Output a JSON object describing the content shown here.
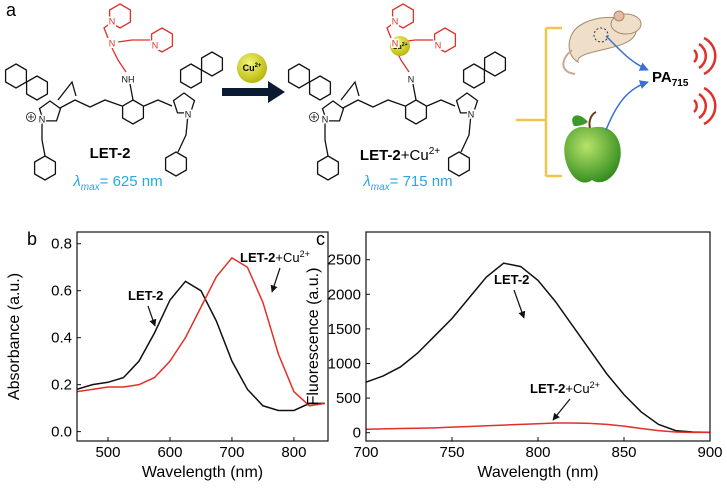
{
  "scheme": {
    "label": "a",
    "reactant": {
      "name": "LET-2",
      "lambda": "λ",
      "sub": "max",
      "value": "= 625 nm"
    },
    "product": {
      "name_parts": [
        "LET-2",
        "+Cu",
        "2+"
      ],
      "lambda": "λ",
      "sub": "max",
      "value": "= 715 nm"
    },
    "reagent": {
      "symbol": "Cu",
      "charge": "2+"
    },
    "output": {
      "symbol": "PA",
      "sub": "715"
    },
    "atoms": [
      [
        "N",
        "N",
        "NH",
        "N",
        "N",
        "N"
      ],
      [
        "N",
        "N",
        "N",
        "N",
        "N",
        "N"
      ]
    ]
  },
  "chart_data": [
    {
      "type": "line",
      "panel_label": "b",
      "x_label": "Wavelength (nm)",
      "y_label": "Absorbance (a.u.)",
      "x": [
        450,
        475,
        500,
        525,
        550,
        575,
        600,
        625,
        650,
        675,
        700,
        725,
        750,
        775,
        800,
        825,
        850
      ],
      "xlim": [
        450,
        855
      ],
      "xticks": [
        500,
        600,
        700,
        800
      ],
      "ylim": [
        -0.04,
        0.85
      ],
      "yticks": [
        {
          "value": 0,
          "label": "0.0"
        },
        0.2,
        0.4,
        0.6,
        0.8
      ],
      "series": [
        {
          "color": "#111111",
          "values": [
            0.18,
            0.2,
            0.21,
            0.23,
            0.3,
            0.42,
            0.56,
            0.64,
            0.6,
            0.47,
            0.3,
            0.18,
            0.11,
            0.09,
            0.09,
            0.12,
            0.12
          ]
        },
        {
          "color": "#e0302a",
          "values": [
            0.17,
            0.18,
            0.19,
            0.19,
            0.2,
            0.23,
            0.3,
            0.4,
            0.53,
            0.66,
            0.74,
            0.7,
            0.55,
            0.33,
            0.17,
            0.11,
            0.12
          ]
        }
      ],
      "annotations": [
        {
          "parts": [
            "LET-2"
          ]
        },
        {
          "parts": [
            "LET-2",
            "+Cu",
            "2+"
          ]
        }
      ]
    },
    {
      "type": "line",
      "panel_label": "c",
      "x_label": "Wavelength (nm)",
      "y_label": "Fluorescence (a.u.)",
      "x": [
        700,
        710,
        720,
        730,
        740,
        750,
        760,
        770,
        780,
        790,
        800,
        810,
        820,
        830,
        840,
        850,
        860,
        870,
        880,
        890,
        900
      ],
      "xlim": [
        700,
        900
      ],
      "xticks": [
        700,
        750,
        800,
        850,
        900
      ],
      "ylim": [
        -120,
        2900
      ],
      "yticks": [
        0,
        500,
        1000,
        1500,
        2000,
        2500
      ],
      "series": [
        {
          "color": "#111111",
          "values": [
            730,
            820,
            950,
            1150,
            1400,
            1650,
            1950,
            2250,
            2450,
            2400,
            2200,
            1900,
            1550,
            1200,
            850,
            550,
            300,
            120,
            30,
            10,
            5
          ]
        },
        {
          "color": "#e0302a",
          "values": [
            50,
            55,
            60,
            65,
            70,
            80,
            90,
            100,
            110,
            120,
            130,
            140,
            140,
            135,
            120,
            95,
            60,
            30,
            10,
            5,
            5
          ]
        }
      ],
      "annotations": [
        {
          "parts": [
            "LET-2"
          ]
        },
        {
          "parts": [
            "LET-2",
            "+Cu",
            "2+"
          ]
        }
      ]
    }
  ]
}
